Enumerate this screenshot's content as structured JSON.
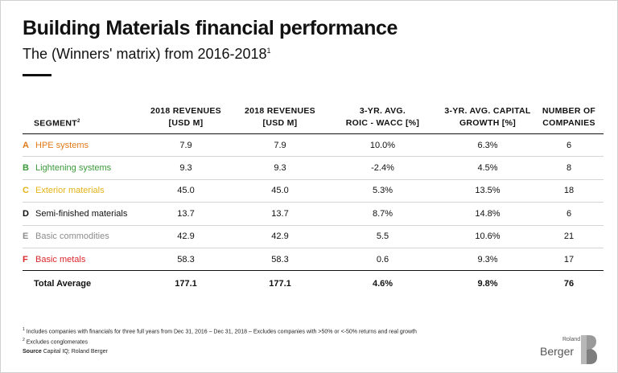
{
  "title": "Building Materials financial performance",
  "subtitle": "The (Winners' matrix) from 2016-2018",
  "subtitle_sup": "1",
  "table": {
    "headers": {
      "segment": "SEGMENT",
      "segment_sup": "2",
      "col1_line1": "2018 REVENUES",
      "col1_line2": "[USD M]",
      "col2_line1": "2018 REVENUES",
      "col2_line2": "[USD M]",
      "col3_line1": "3-YR. AVG.",
      "col3_line2": "ROIC - WACC [%]",
      "col4_line1": "3-YR. AVG. CAPITAL",
      "col4_line2": "GROWTH [%]",
      "col5_line1": "NUMBER OF",
      "col5_line2": "COMPANIES"
    },
    "rows": [
      {
        "letter": "A",
        "name": "HPE systems",
        "color": "#e07b1a",
        "rev1": "7.9",
        "rev2": "7.9",
        "roic": "10.0%",
        "growth": "6.3%",
        "companies": "6"
      },
      {
        "letter": "B",
        "name": "Lightening systems",
        "color": "#3a9a3a",
        "rev1": "9.3",
        "rev2": "9.3",
        "roic": "-2.4%",
        "growth": "4.5%",
        "companies": "8"
      },
      {
        "letter": "C",
        "name": "Exterior materials",
        "color": "#e3b31a",
        "rev1": "45.0",
        "rev2": "45.0",
        "roic": "5.3%",
        "growth": "13.5%",
        "companies": "18"
      },
      {
        "letter": "D",
        "name": "Semi-finished materials",
        "color": "#111111",
        "rev1": "13.7",
        "rev2": "13.7",
        "roic": "8.7%",
        "growth": "14.8%",
        "companies": "6"
      },
      {
        "letter": "E",
        "name": "Basic commodities",
        "color": "#8c8c8c",
        "rev1": "42.9",
        "rev2": "42.9",
        "roic": "5.5",
        "growth": "10.6%",
        "companies": "21"
      },
      {
        "letter": "F",
        "name": "Basic metals",
        "color": "#d9262b",
        "rev1": "58.3",
        "rev2": "58.3",
        "roic": "0.6",
        "growth": "9.3%",
        "companies": "17"
      }
    ],
    "total": {
      "name": "Total Average",
      "rev1": "177.1",
      "rev2": "177.1",
      "roic": "4.6%",
      "growth": "9.8%",
      "companies": "76"
    }
  },
  "footnotes": {
    "note1_sup": "1",
    "note1": "Includes companies with financials for three full years from Dec 31, 2016 – Dec 31, 2018 – Excludes companies with >50% or <-50% returns and real growth",
    "note2_sup": "2",
    "note2": "Excludes conglomerates",
    "source_label": "Source",
    "source": "Capital IQ; Roland Berger"
  },
  "logo": {
    "small": "Roland",
    "big": "Berger"
  }
}
